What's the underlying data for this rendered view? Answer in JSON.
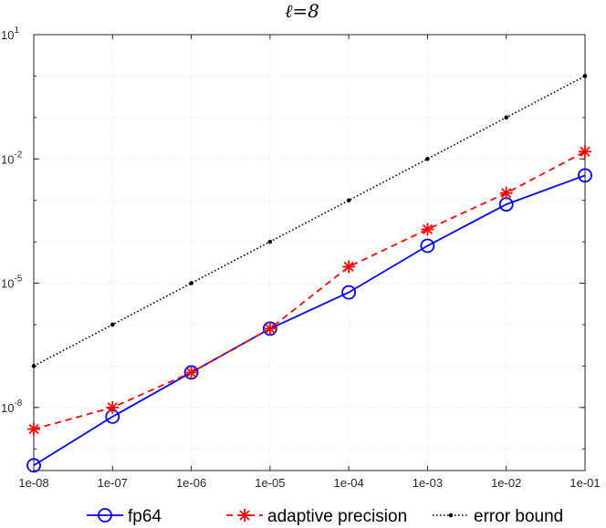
{
  "chart_data": {
    "type": "line",
    "title": "ℓ=8",
    "xlabel": "",
    "ylabel": "",
    "x_scale": "log",
    "y_scale": "log",
    "x": [
      1e-08,
      1e-07,
      1e-06,
      1e-05,
      0.0001,
      0.001,
      0.01,
      0.1
    ],
    "x_tick_labels": [
      "1e-08",
      "1e-07",
      "1e-06",
      "1e-05",
      "1e-04",
      "1e-03",
      "1e-02",
      "1e-01"
    ],
    "xlim": [
      1e-08,
      0.1
    ],
    "ylim": [
      3e-10,
      10
    ],
    "y_ticks": [
      {
        "base": "10",
        "exp": "1",
        "value": 10
      },
      {
        "base": "10",
        "exp": "-2",
        "value": 0.01
      },
      {
        "base": "10",
        "exp": "-5",
        "value": 1e-05
      },
      {
        "base": "10",
        "exp": "-8",
        "value": 1e-08
      }
    ],
    "grid": true,
    "legend_position": "bottom-outside",
    "series": [
      {
        "name": "fp64",
        "color": "#0000ff",
        "line_style": "solid",
        "marker": "circle",
        "values": [
          4e-10,
          6e-09,
          7e-08,
          8e-07,
          6e-06,
          8e-05,
          0.0008,
          0.004
        ]
      },
      {
        "name": "adaptive precision",
        "color": "#ff0000",
        "line_style": "dashed",
        "marker": "asterisk",
        "values": [
          3e-09,
          1e-08,
          7e-08,
          8e-07,
          2.5e-05,
          0.0002,
          0.0015,
          0.015
        ]
      },
      {
        "name": "error bound",
        "color": "#000000",
        "line_style": "dotted",
        "marker": "dot",
        "values": [
          1e-07,
          1e-06,
          1e-05,
          0.0001,
          0.001,
          0.01,
          0.1,
          1
        ]
      }
    ]
  }
}
